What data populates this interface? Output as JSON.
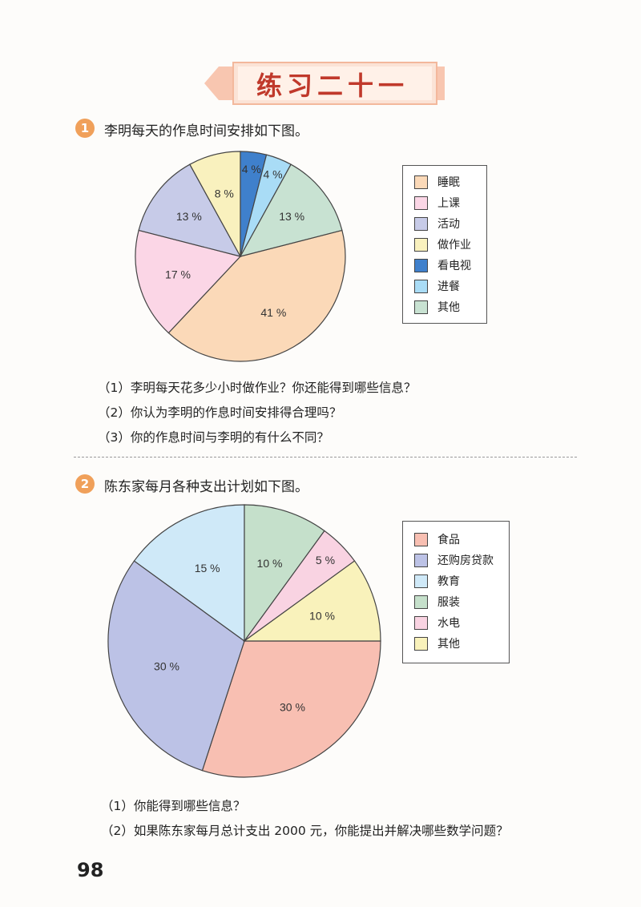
{
  "header": {
    "title": "练习二十一"
  },
  "q1": {
    "number": "1",
    "title": "李明每天的作息时间安排如下图。",
    "sub_questions": [
      "（1）李明每天花多少小时做作业？你还能得到哪些信息？",
      "（2）你认为李明的作息时间安排得合理吗？",
      "（3）你的作息时间与李明的有什么不同？"
    ]
  },
  "q2": {
    "number": "2",
    "title": "陈东家每月各种支出计划如下图。",
    "sub_questions": [
      "（1）你能得到哪些信息？",
      "（2）如果陈东家每月总计支出 2000 元，你能提出并解决哪些数学问题？"
    ]
  },
  "page": {
    "number": "98"
  },
  "chart_data": [
    {
      "type": "pie",
      "title": "",
      "legend_position": "right",
      "slices": [
        {
          "name": "睡眠",
          "value": 41,
          "label": "41 %",
          "color": "#fbd9b8"
        },
        {
          "name": "上课",
          "value": 17,
          "label": "17 %",
          "color": "#fbd6e6"
        },
        {
          "name": "活动",
          "value": 13,
          "label": "13 %",
          "color": "#c7cbe8"
        },
        {
          "name": "做作业",
          "value": 8,
          "label": "8 %",
          "color": "#f9f1be"
        },
        {
          "name": "看电视",
          "value": 4,
          "label": "4 %",
          "color": "#3f80cc"
        },
        {
          "name": "进餐",
          "value": 4,
          "label": "4 %",
          "color": "#a9dcf6"
        },
        {
          "name": "其他",
          "value": 13,
          "label": "13 %",
          "color": "#c8e2d2"
        }
      ],
      "legend_order": [
        "睡眠",
        "上课",
        "活动",
        "做作业",
        "看电视",
        "进餐",
        "其他"
      ]
    },
    {
      "type": "pie",
      "title": "",
      "legend_position": "right",
      "slices": [
        {
          "name": "食品",
          "value": 30,
          "label": "30 %",
          "color": "#f8bfb2"
        },
        {
          "name": "还购房贷款",
          "value": 30,
          "label": "30 %",
          "color": "#bcc2e6"
        },
        {
          "name": "教育",
          "value": 15,
          "label": "15 %",
          "color": "#cfe9f8"
        },
        {
          "name": "服装",
          "value": 10,
          "label": "10 %",
          "color": "#c5e0cb"
        },
        {
          "name": "水电",
          "value": 5,
          "label": "5 %",
          "color": "#f9d3e2"
        },
        {
          "name": "其他",
          "value": 10,
          "label": "10 %",
          "color": "#f9f2bb"
        }
      ],
      "legend_order": [
        "食品",
        "还购房贷款",
        "教育",
        "服装",
        "水电",
        "其他"
      ]
    }
  ]
}
